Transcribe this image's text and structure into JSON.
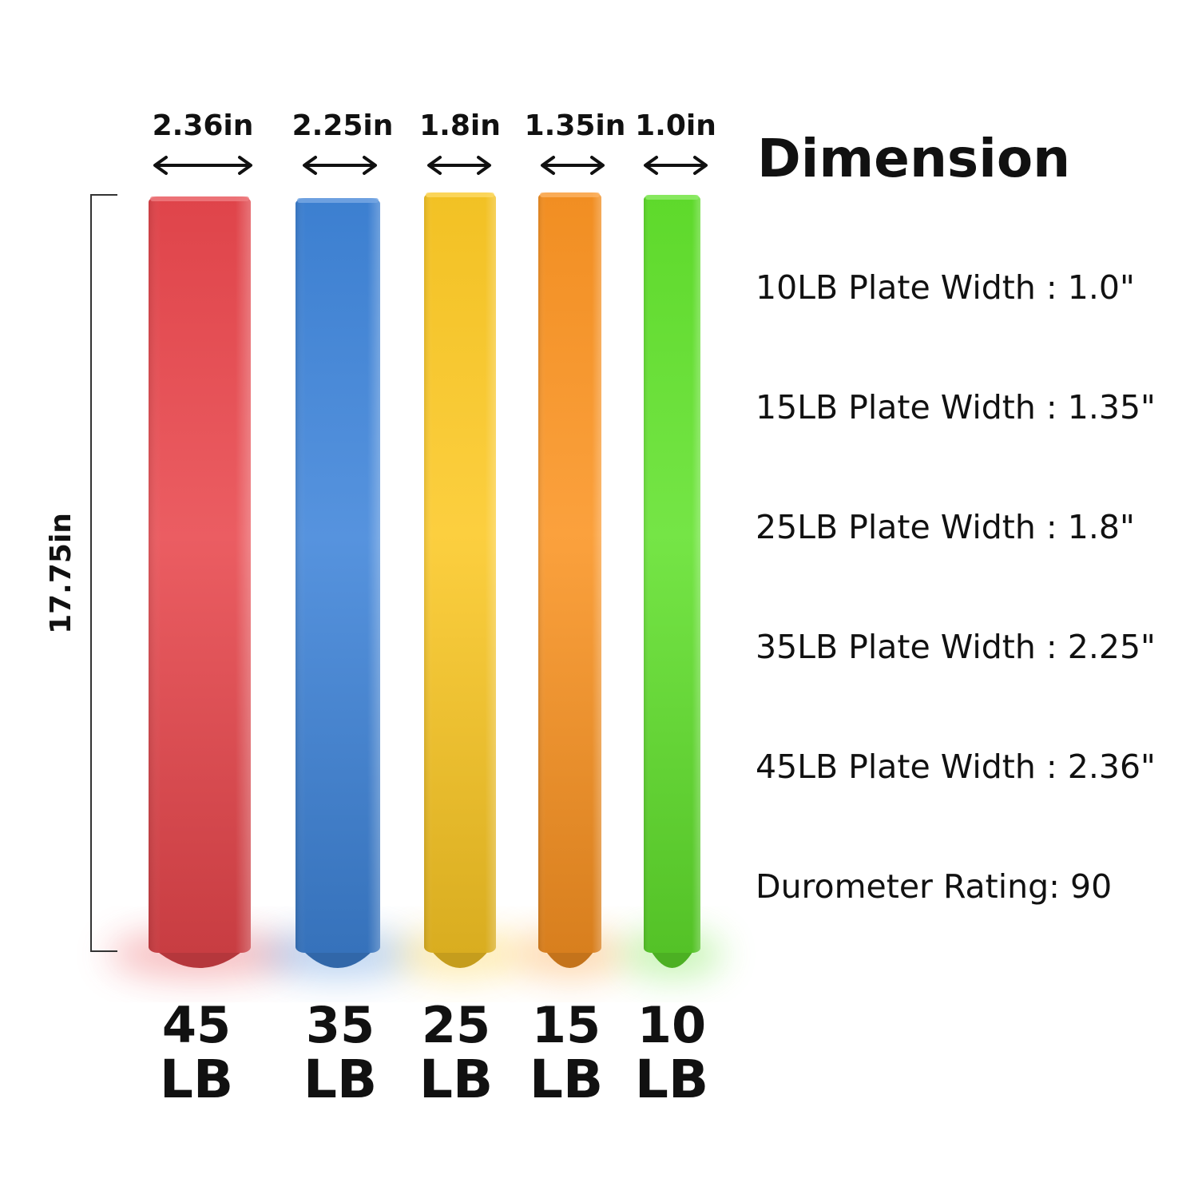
{
  "dimension_title": "Dimension",
  "height_label": "17.75in",
  "plates": [
    {
      "width_label": "2.36in",
      "weight_number": "45",
      "weight_unit": "LB",
      "color": "#e8474d"
    },
    {
      "width_label": "2.25in",
      "weight_number": "35",
      "weight_unit": "LB",
      "color": "#3f84d9"
    },
    {
      "width_label": "1.8in",
      "weight_number": "25",
      "weight_unit": "LB",
      "color": "#fcc925"
    },
    {
      "width_label": "1.35in",
      "weight_number": "15",
      "weight_unit": "LB",
      "color": "#fb9423"
    },
    {
      "width_label": "1.0in",
      "weight_number": "10",
      "weight_unit": "LB",
      "color": "#62e22d"
    }
  ],
  "specs": [
    "10LB Plate Width : 1.0\"",
    "15LB Plate Width : 1.35\"",
    "25LB Plate Width : 1.8\"",
    "35LB Plate Width : 2.25\"",
    "45LB Plate Width : 2.36\"",
    "Durometer Rating: 90"
  ]
}
